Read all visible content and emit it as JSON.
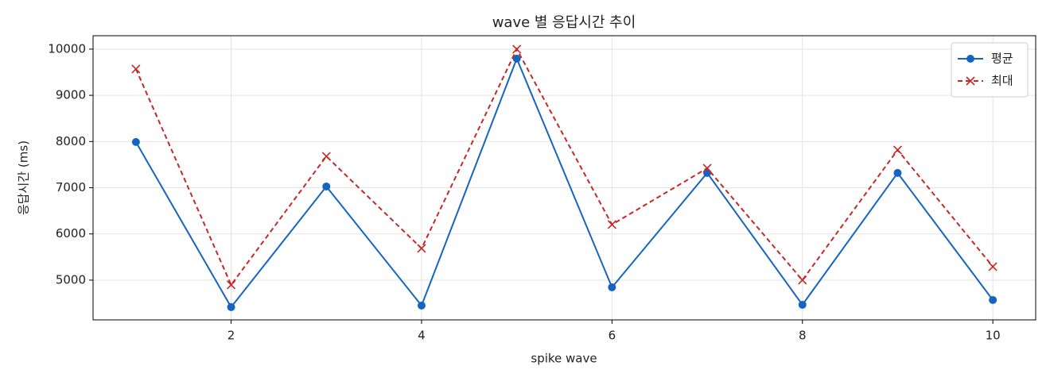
{
  "chart_data": {
    "type": "line",
    "title": "wave 별 응답시간 추이",
    "x_label": "spike wave",
    "y_label": "응답시간 (ms)",
    "x": [
      1,
      2,
      3,
      4,
      5,
      6,
      7,
      8,
      9,
      10
    ],
    "series": [
      {
        "name": "평균",
        "color": "#1565c0",
        "marker": "o",
        "linestyle": "solid",
        "values": [
          7990,
          4416,
          7027,
          4450,
          9794,
          4845,
          7320,
          4467,
          7320,
          4570
        ]
      },
      {
        "name": "최대",
        "color": "#c62828",
        "marker": "x",
        "linestyle": "dashed",
        "values": [
          9570,
          4897,
          7680,
          5687,
          10000,
          6203,
          7423,
          5000,
          7818,
          5292
        ]
      }
    ],
    "xlim": [
      0.55,
      10.45
    ],
    "xticks": [
      2,
      4,
      6,
      8,
      10
    ],
    "ylim": [
      4140,
      10290
    ],
    "yticks": [
      5000,
      6000,
      7000,
      8000,
      9000,
      10000
    ],
    "grid": true,
    "legend": "upper right"
  }
}
